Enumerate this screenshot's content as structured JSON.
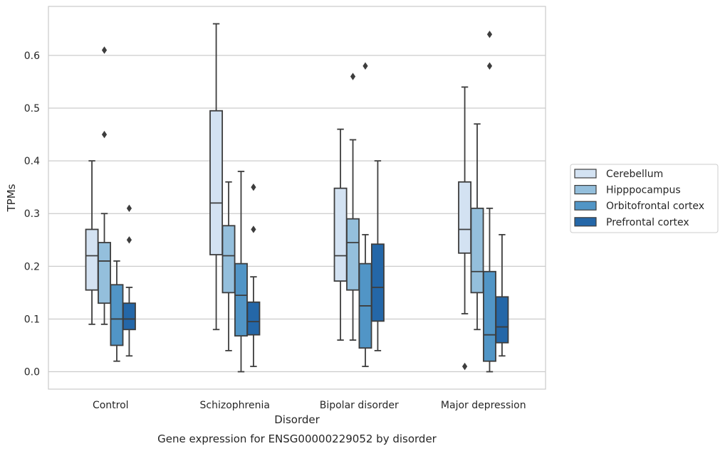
{
  "chart_data": {
    "type": "box",
    "caption": "Gene expression for ENSG00000229052 by disorder",
    "xlabel": "Disorder",
    "ylabel": "TPMs",
    "ylim": [
      -0.033,
      0.693
    ],
    "yticks": [
      "0.0",
      "0.1",
      "0.2",
      "0.3",
      "0.4",
      "0.5",
      "0.6"
    ],
    "grid": true,
    "legend_position": "right",
    "categories": [
      "Control",
      "Schizophrenia",
      "Bipolar disorder",
      "Major depression"
    ],
    "series": [
      {
        "name": "Cerebellum",
        "color": "#d3e2f2",
        "boxes": [
          {
            "whisker_low": 0.09,
            "q1": 0.155,
            "median": 0.22,
            "q3": 0.27,
            "whisker_high": 0.4,
            "outliers": []
          },
          {
            "whisker_low": 0.08,
            "q1": 0.222,
            "median": 0.32,
            "q3": 0.495,
            "whisker_high": 0.66,
            "outliers": []
          },
          {
            "whisker_low": 0.06,
            "q1": 0.172,
            "median": 0.22,
            "q3": 0.348,
            "whisker_high": 0.46,
            "outliers": []
          },
          {
            "whisker_low": 0.11,
            "q1": 0.225,
            "median": 0.27,
            "q3": 0.36,
            "whisker_high": 0.54,
            "outliers": [
              0.01
            ]
          }
        ]
      },
      {
        "name": "Hipppocampus",
        "color": "#94bfdc",
        "boxes": [
          {
            "whisker_low": 0.09,
            "q1": 0.13,
            "median": 0.21,
            "q3": 0.245,
            "whisker_high": 0.3,
            "outliers": [
              0.45,
              0.61
            ]
          },
          {
            "whisker_low": 0.04,
            "q1": 0.15,
            "median": 0.22,
            "q3": 0.277,
            "whisker_high": 0.36,
            "outliers": []
          },
          {
            "whisker_low": 0.06,
            "q1": 0.155,
            "median": 0.245,
            "q3": 0.29,
            "whisker_high": 0.44,
            "outliers": [
              0.56
            ]
          },
          {
            "whisker_low": 0.08,
            "q1": 0.15,
            "median": 0.19,
            "q3": 0.31,
            "whisker_high": 0.47,
            "outliers": []
          }
        ]
      },
      {
        "name": "Orbitofrontal cortex",
        "color": "#5195c6",
        "boxes": [
          {
            "whisker_low": 0.02,
            "q1": 0.05,
            "median": 0.1,
            "q3": 0.165,
            "whisker_high": 0.21,
            "outliers": []
          },
          {
            "whisker_low": 0.0,
            "q1": 0.068,
            "median": 0.145,
            "q3": 0.205,
            "whisker_high": 0.38,
            "outliers": []
          },
          {
            "whisker_low": 0.01,
            "q1": 0.045,
            "median": 0.125,
            "q3": 0.205,
            "whisker_high": 0.26,
            "outliers": [
              0.58
            ]
          },
          {
            "whisker_low": 0.0,
            "q1": 0.02,
            "median": 0.07,
            "q3": 0.19,
            "whisker_high": 0.31,
            "outliers": [
              0.58,
              0.64
            ]
          }
        ]
      },
      {
        "name": "Prefrontal cortex",
        "color": "#2467a8",
        "boxes": [
          {
            "whisker_low": 0.03,
            "q1": 0.08,
            "median": 0.1,
            "q3": 0.13,
            "whisker_high": 0.16,
            "outliers": [
              0.25,
              0.31
            ]
          },
          {
            "whisker_low": 0.01,
            "q1": 0.07,
            "median": 0.095,
            "q3": 0.132,
            "whisker_high": 0.18,
            "outliers": [
              0.27,
              0.35
            ]
          },
          {
            "whisker_low": 0.04,
            "q1": 0.096,
            "median": 0.16,
            "q3": 0.242,
            "whisker_high": 0.4,
            "outliers": []
          },
          {
            "whisker_low": 0.03,
            "q1": 0.055,
            "median": 0.085,
            "q3": 0.142,
            "whisker_high": 0.26,
            "outliers": []
          }
        ]
      }
    ]
  }
}
